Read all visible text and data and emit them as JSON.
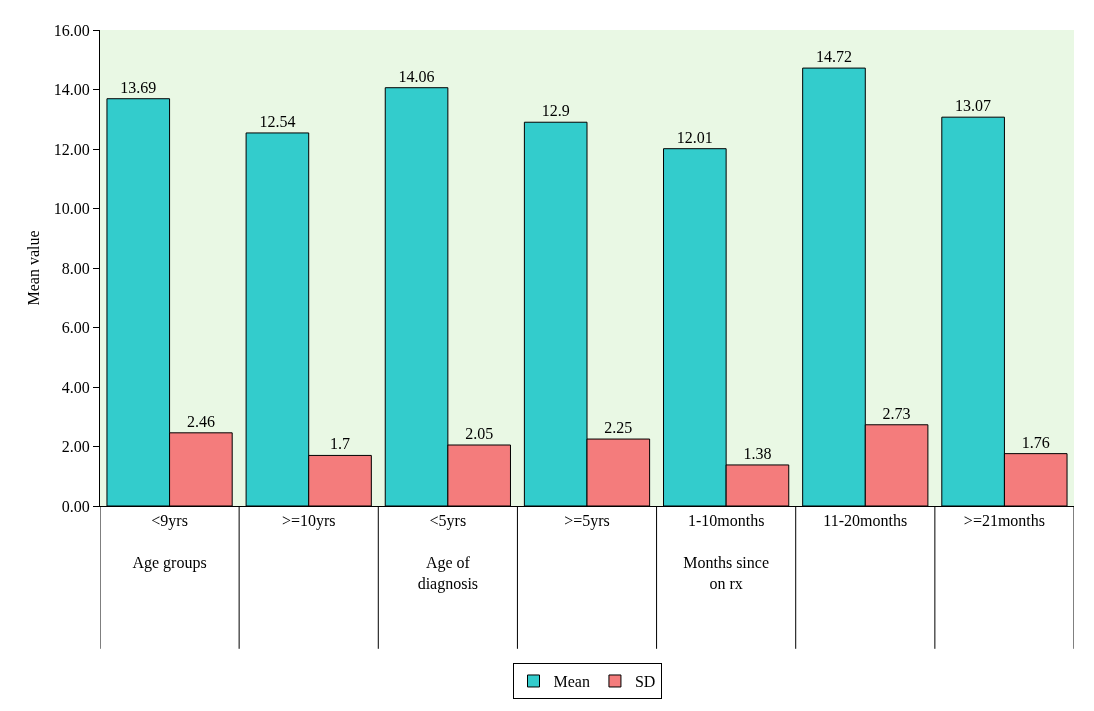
{
  "chart_data": {
    "type": "bar",
    "ylabel": "Mean value",
    "categories": [
      "<9yrs\n\nAge groups",
      ">=10yrs",
      "<5yrs\n\nAge of\ndiagnosis",
      ">=5yrs",
      "1-10months\n\nMonths since\non rx",
      "11-20months",
      ">=21months"
    ],
    "series": [
      {
        "name": "Mean",
        "color": "#33cccc",
        "values": [
          13.69,
          12.54,
          14.06,
          12.9,
          12.01,
          14.72,
          13.07
        ]
      },
      {
        "name": "SD",
        "color": "#f47c7c",
        "values": [
          2.46,
          1.7,
          2.05,
          2.25,
          1.38,
          2.73,
          1.76
        ]
      }
    ],
    "ylim": [
      0,
      16
    ],
    "yticks": [
      {
        "value": 0,
        "label": "0.00"
      },
      {
        "value": 2,
        "label": "2.00"
      },
      {
        "value": 4,
        "label": "4.00"
      },
      {
        "value": 6,
        "label": "6.00"
      },
      {
        "value": 8,
        "label": "8.00"
      },
      {
        "value": 10,
        "label": "10.00"
      },
      {
        "value": 12,
        "label": "12.00"
      },
      {
        "value": 14,
        "label": "14.00"
      },
      {
        "value": 16,
        "label": "16.00"
      }
    ],
    "data_labels": true,
    "legend": "bottom",
    "grid": false
  }
}
